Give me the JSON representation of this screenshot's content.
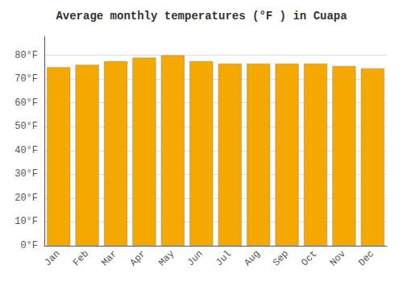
{
  "chart_data": {
    "type": "bar",
    "title": "Average monthly temperatures (°F ) in Cuapa",
    "categories": [
      "Jan",
      "Feb",
      "Mar",
      "Apr",
      "May",
      "Jun",
      "Jul",
      "Aug",
      "Sep",
      "Oct",
      "Nov",
      "Dec"
    ],
    "values": [
      75,
      76,
      77.5,
      79,
      80,
      77.5,
      76.5,
      76.5,
      76.5,
      76.5,
      75.5,
      74.5
    ],
    "color": "#F5A800",
    "ylim": [
      0,
      88
    ],
    "yticks": [
      {
        "value": 0,
        "label": "0°F"
      },
      {
        "value": 10,
        "label": "10°F"
      },
      {
        "value": 20,
        "label": "20°F"
      },
      {
        "value": 30,
        "label": "30°F"
      },
      {
        "value": 40,
        "label": "40°F"
      },
      {
        "value": 50,
        "label": "50°F"
      },
      {
        "value": 60,
        "label": "60°F"
      },
      {
        "value": 70,
        "label": "70°F"
      },
      {
        "value": 80,
        "label": "80°F"
      }
    ],
    "grid": true
  }
}
